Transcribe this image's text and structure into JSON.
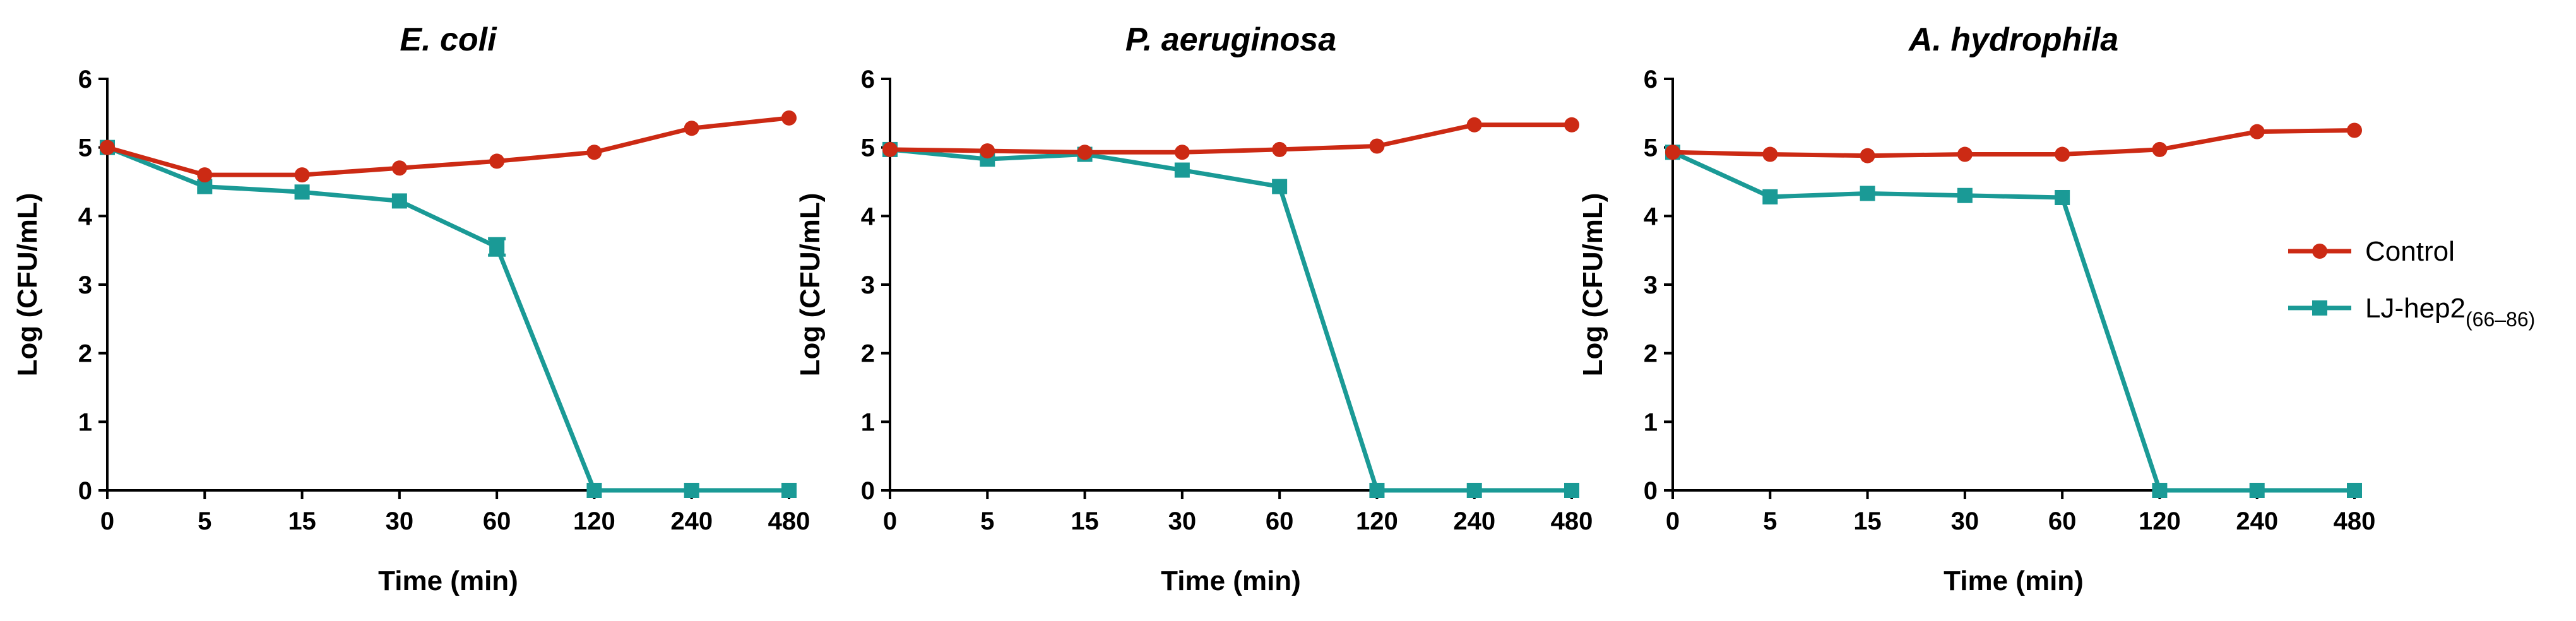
{
  "chart_data": [
    {
      "type": "line",
      "title": "E. coli",
      "xlabel": "Time (min)",
      "ylabel": "Log (CFU/mL)",
      "categories": [
        "0",
        "5",
        "15",
        "30",
        "60",
        "120",
        "240",
        "480"
      ],
      "ylim": [
        0,
        6
      ],
      "yticks": [
        "0",
        "1",
        "2",
        "3",
        "4",
        "5",
        "6"
      ],
      "grid": false,
      "series": [
        {
          "name": "Control",
          "color": "#cc2a14",
          "marker": "circle",
          "values": [
            5.0,
            4.6,
            4.6,
            4.7,
            4.8,
            4.93,
            5.28,
            5.43
          ],
          "errors": [
            0,
            0,
            0,
            0,
            0,
            0,
            0,
            0
          ]
        },
        {
          "name": "LJ-hep2(66–86)",
          "color": "#1a9a96",
          "marker": "square",
          "values": [
            5.0,
            4.43,
            4.35,
            4.22,
            3.55,
            0.0,
            0.0,
            0.0
          ],
          "errors": [
            0,
            0,
            0,
            0,
            0.12,
            0,
            0,
            0
          ]
        }
      ]
    },
    {
      "type": "line",
      "title": "P. aeruginosa",
      "xlabel": "Time (min)",
      "ylabel": "Log (CFU/mL)",
      "categories": [
        "0",
        "5",
        "15",
        "30",
        "60",
        "120",
        "240",
        "480"
      ],
      "ylim": [
        0,
        6
      ],
      "yticks": [
        "0",
        "1",
        "2",
        "3",
        "4",
        "5",
        "6"
      ],
      "grid": false,
      "series": [
        {
          "name": "Control",
          "color": "#cc2a14",
          "marker": "circle",
          "values": [
            4.97,
            4.95,
            4.93,
            4.93,
            4.97,
            5.02,
            5.33,
            5.33
          ],
          "errors": [
            0,
            0,
            0,
            0,
            0,
            0,
            0,
            0
          ]
        },
        {
          "name": "LJ-hep2(66–86)",
          "color": "#1a9a96",
          "marker": "square",
          "values": [
            4.97,
            4.83,
            4.9,
            4.67,
            4.43,
            0.0,
            0.0,
            0.0
          ],
          "errors": [
            0,
            0,
            0,
            0,
            0,
            0,
            0,
            0
          ]
        }
      ]
    },
    {
      "type": "line",
      "title": "A. hydrophila",
      "xlabel": "Time (min)",
      "ylabel": "Log (CFU/mL)",
      "categories": [
        "0",
        "5",
        "15",
        "30",
        "60",
        "120",
        "240",
        "480"
      ],
      "ylim": [
        0,
        6
      ],
      "yticks": [
        "0",
        "1",
        "2",
        "3",
        "4",
        "5",
        "6"
      ],
      "grid": false,
      "series": [
        {
          "name": "Control",
          "color": "#cc2a14",
          "marker": "circle",
          "values": [
            4.93,
            4.9,
            4.88,
            4.9,
            4.9,
            4.97,
            5.23,
            5.25
          ],
          "errors": [
            0,
            0,
            0,
            0,
            0,
            0,
            0,
            0
          ]
        },
        {
          "name": "LJ-hep2(66–86)",
          "color": "#1a9a96",
          "marker": "square",
          "values": [
            4.93,
            4.28,
            4.33,
            4.3,
            4.27,
            0.0,
            0.0,
            0.0
          ],
          "errors": [
            0,
            0,
            0,
            0,
            0,
            0,
            0,
            0
          ]
        }
      ]
    }
  ],
  "legend": {
    "placement": "right",
    "items": [
      {
        "label": "Control",
        "subscript": "",
        "color": "#cc2a14",
        "marker": "circle"
      },
      {
        "label": "LJ-hep2",
        "subscript": "(66–86)",
        "color": "#1a9a96",
        "marker": "square"
      }
    ]
  }
}
